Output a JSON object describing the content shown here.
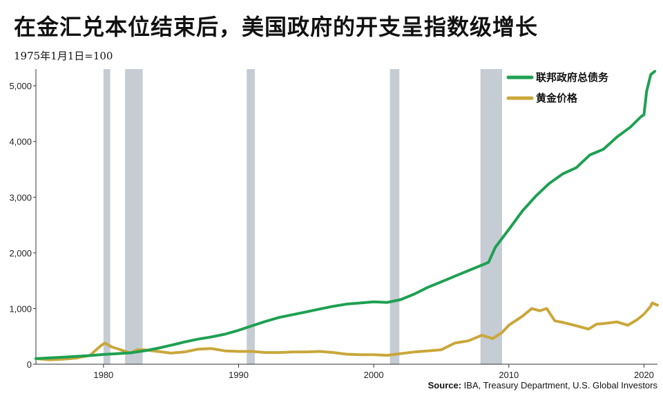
{
  "title": "在金汇兑本位结束后，美国政府的开支呈指数级增长",
  "subtitle": "1975年1月1日=100",
  "source_prefix": "Source:",
  "source_rest": " IBA, Treasury Department, U.S. Global Investors",
  "colors": {
    "debt": "#1ea052",
    "gold": "#c9a73a",
    "recession": "#c5ccd4"
  },
  "chart_data": {
    "type": "line",
    "title": "在金汇兑本位结束后，美国政府的开支呈指数级增长",
    "subtitle": "1975年1月1日=100",
    "xlabel": "",
    "ylabel": "",
    "xlim": [
      1975,
      2021
    ],
    "ylim": [
      0,
      5300
    ],
    "x_ticks": [
      1980,
      1990,
      2000,
      2010,
      2020
    ],
    "y_ticks": [
      0,
      1000,
      2000,
      3000,
      4000,
      5000
    ],
    "y_tick_labels": [
      "0",
      "1,000",
      "2,000",
      "3,000",
      "4,000",
      "5,000"
    ],
    "grid": false,
    "legend_position": "top-right",
    "recessions": [
      [
        1980.0,
        1980.5
      ],
      [
        1981.6,
        1982.9
      ],
      [
        1990.6,
        1991.2
      ],
      [
        2001.2,
        2001.9
      ],
      [
        2007.9,
        2009.5
      ]
    ],
    "series": [
      {
        "name": "联邦政府总债务",
        "color_key": "debt",
        "x": [
          1975,
          1977,
          1979,
          1980,
          1981,
          1982,
          1983,
          1984,
          1985,
          1986,
          1987,
          1988,
          1989,
          1990,
          1991,
          1992,
          1993,
          1994,
          1995,
          1996,
          1997,
          1998,
          1999,
          2000,
          2001,
          2002,
          2003,
          2004,
          2005,
          2006,
          2007,
          2008,
          2008.5,
          2009,
          2010,
          2011,
          2012,
          2013,
          2014,
          2015,
          2016,
          2017,
          2018,
          2019,
          2019.8,
          2020.0,
          2020.2,
          2020.5,
          2020.8
        ],
        "values": [
          100,
          125,
          155,
          175,
          190,
          205,
          240,
          285,
          340,
          400,
          450,
          490,
          540,
          610,
          690,
          770,
          840,
          890,
          940,
          990,
          1040,
          1080,
          1100,
          1120,
          1110,
          1160,
          1260,
          1380,
          1480,
          1580,
          1680,
          1780,
          1830,
          2100,
          2420,
          2750,
          3020,
          3250,
          3420,
          3530,
          3760,
          3860,
          4080,
          4260,
          4450,
          4480,
          4900,
          5200,
          5260
        ]
      },
      {
        "name": "黄金价格",
        "color_key": "gold",
        "x": [
          1975,
          1976,
          1977,
          1978,
          1979,
          1979.8,
          1980.1,
          1980.6,
          1981,
          1981.5,
          1982,
          1982.5,
          1983,
          1984,
          1985,
          1986,
          1987,
          1988,
          1989,
          1990,
          1991,
          1992,
          1993,
          1994,
          1995,
          1996,
          1997,
          1998,
          1999,
          2000,
          2001,
          2002,
          2003,
          2004,
          2005,
          2006,
          2007,
          2008,
          2008.8,
          2009.5,
          2010,
          2011,
          2011.7,
          2012.3,
          2012.8,
          2013.4,
          2014,
          2015,
          2015.9,
          2016.5,
          2017,
          2018,
          2018.8,
          2019.5,
          2020,
          2020.5,
          2020.6,
          2021
        ],
        "values": [
          100,
          80,
          90,
          110,
          160,
          330,
          380,
          310,
          280,
          240,
          200,
          260,
          260,
          230,
          200,
          220,
          270,
          280,
          240,
          230,
          230,
          210,
          210,
          220,
          220,
          230,
          210,
          180,
          170,
          170,
          160,
          190,
          220,
          240,
          260,
          380,
          420,
          520,
          460,
          570,
          700,
          860,
          1000,
          960,
          1000,
          780,
          750,
          690,
          630,
          720,
          730,
          760,
          700,
          800,
          900,
          1040,
          1100,
          1060
        ]
      }
    ]
  }
}
